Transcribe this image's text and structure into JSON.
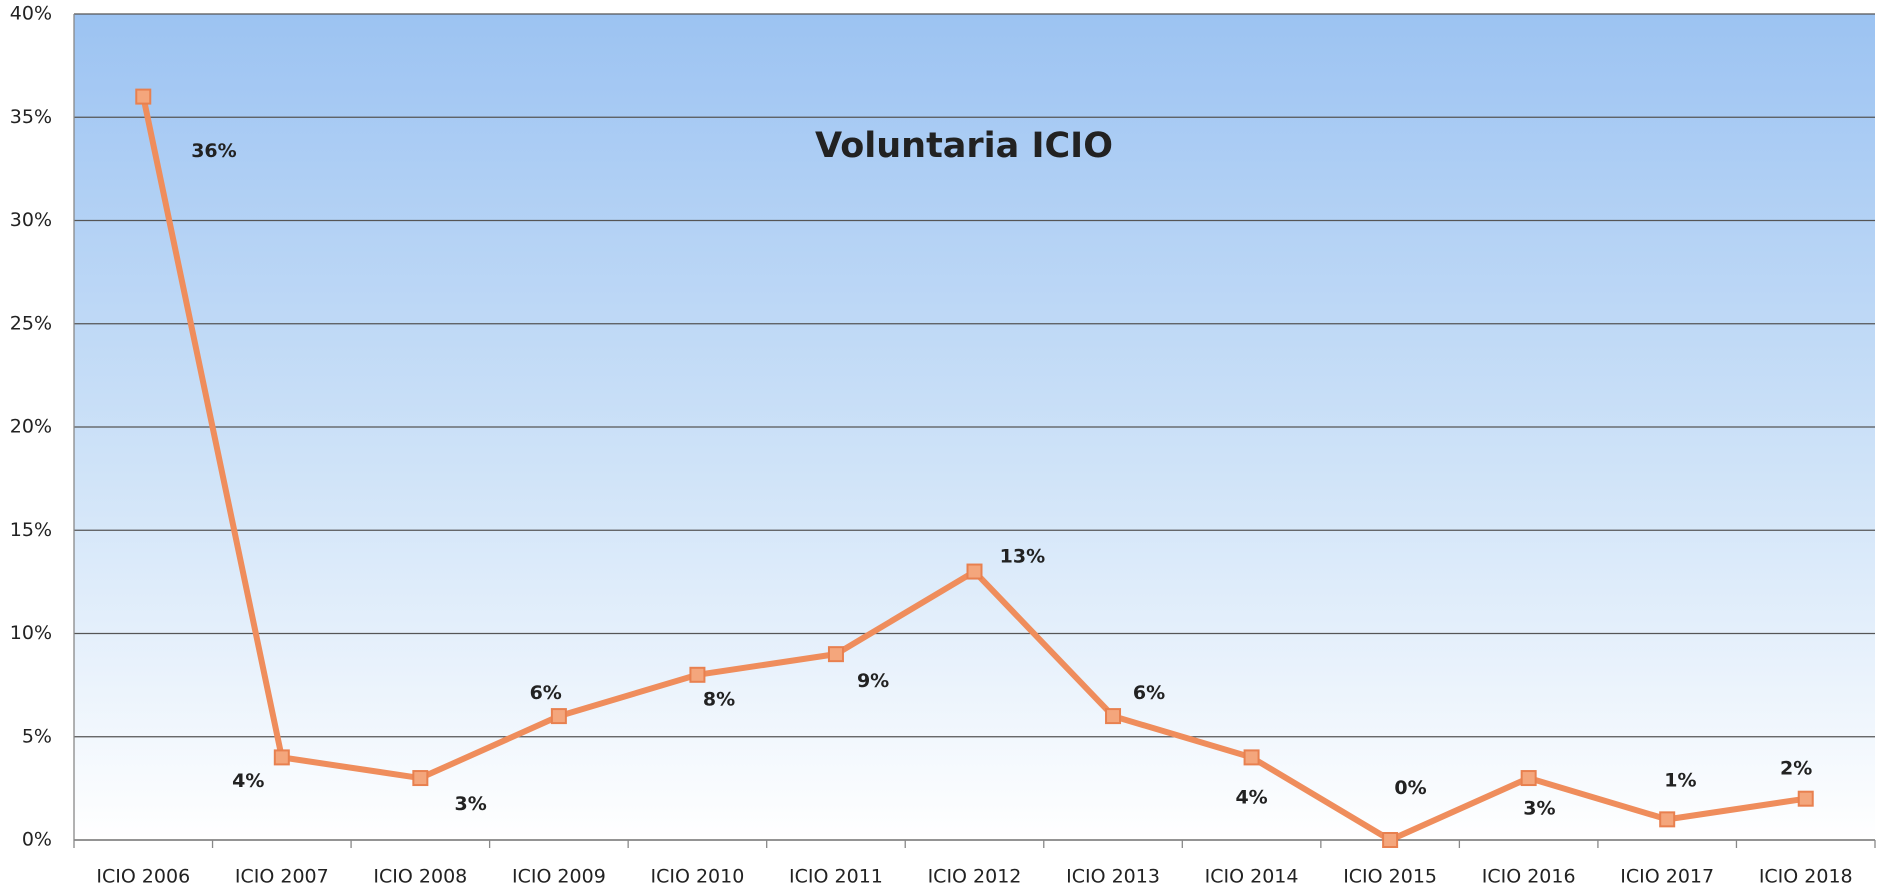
{
  "chart_data": {
    "type": "line",
    "title": "Voluntaria ICIO",
    "categories": [
      "ICIO 2006",
      "ICIO 2007",
      "ICIO 2008",
      "ICIO 2009",
      "ICIO 2010",
      "ICIO 2011",
      "ICIO 2012",
      "ICIO 2013",
      "ICIO 2014",
      "ICIO 2015",
      "ICIO 2016",
      "ICIO 2017",
      "ICIO 2018"
    ],
    "series": [
      {
        "color": "#ef8d5c",
        "values": [
          36,
          4,
          3,
          6,
          8,
          9,
          13,
          6,
          4,
          0,
          3,
          1,
          2
        ],
        "value_labels": [
          "36%",
          "4%",
          "3%",
          "6%",
          "8%",
          "9%",
          "13%",
          "6%",
          "4%",
          "0%",
          "3%",
          "1%",
          "2%"
        ]
      }
    ],
    "ylim": [
      0,
      40
    ],
    "yticks": [
      {
        "value": 0,
        "label": "0%"
      },
      {
        "value": 5,
        "label": "5%"
      },
      {
        "value": 10,
        "label": "10%"
      },
      {
        "value": 15,
        "label": "15%"
      },
      {
        "value": 20,
        "label": "20%"
      },
      {
        "value": 25,
        "label": "25%"
      },
      {
        "value": 30,
        "label": "30%"
      },
      {
        "value": 35,
        "label": "35%"
      },
      {
        "value": 40,
        "label": "40%"
      }
    ],
    "grid": true
  }
}
